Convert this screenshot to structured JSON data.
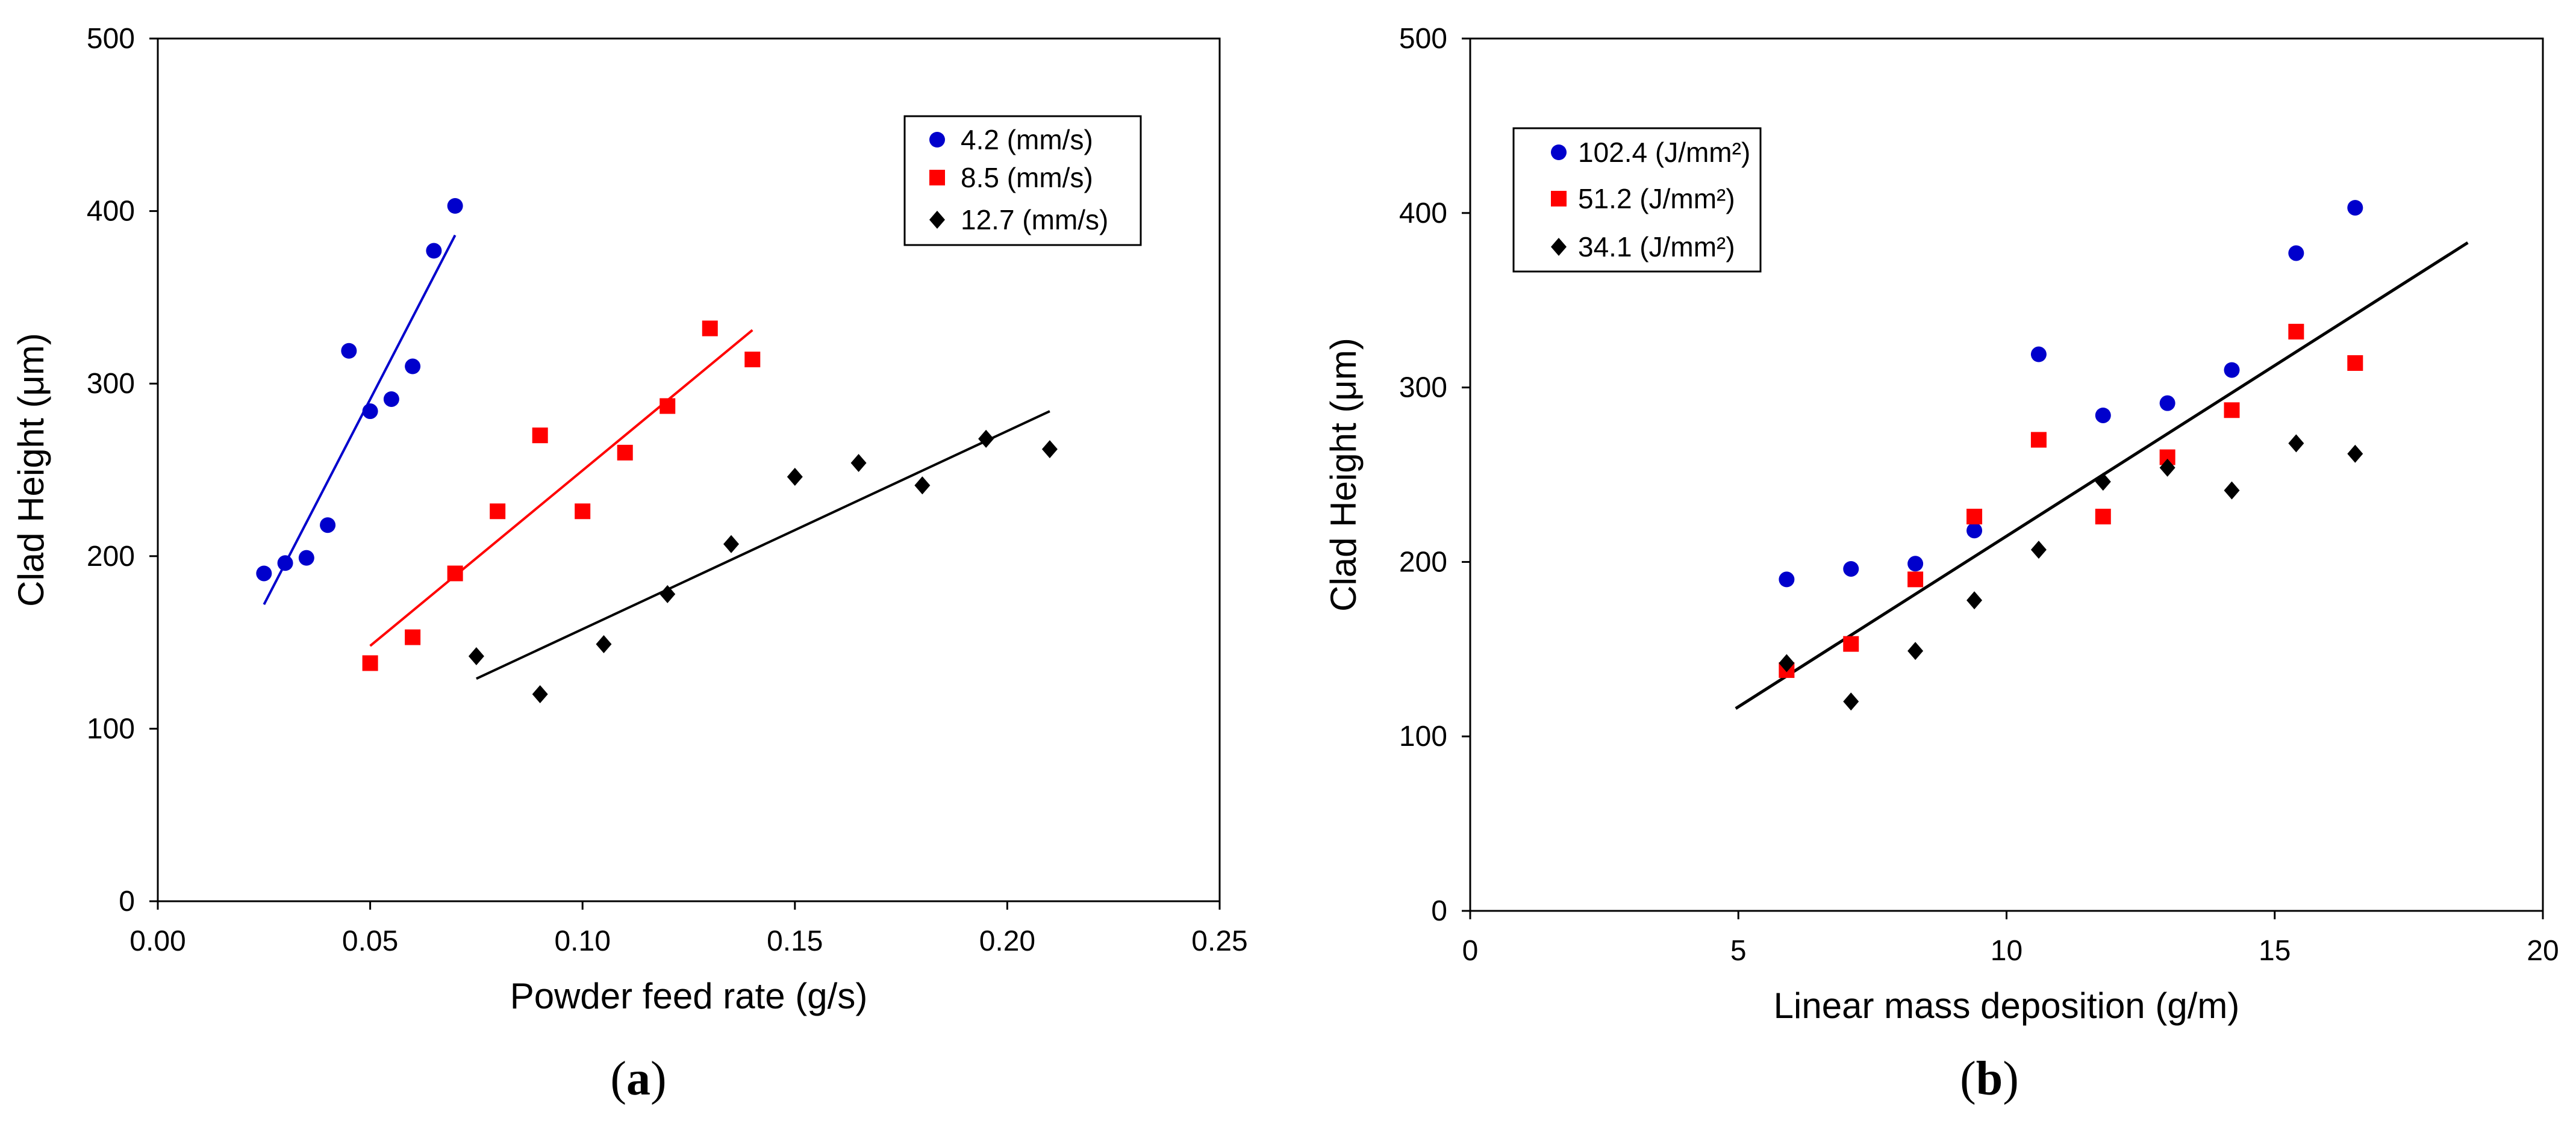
{
  "chart_data": [
    {
      "type": "scatter",
      "caption": "(a)",
      "xlabel": "Powder feed rate (g/s)",
      "ylabel": "Clad Height (μm)",
      "xlim": [
        0,
        0.25
      ],
      "ylim": [
        0,
        500
      ],
      "xticks": [
        "0.00",
        "0.05",
        "0.10",
        "0.15",
        "0.20",
        "0.25"
      ],
      "yticks": [
        "0",
        "100",
        "200",
        "300",
        "400",
        "500"
      ],
      "legend_position": "top-right",
      "series": [
        {
          "name": "4.2 (mm/s)",
          "color": "#0000cc",
          "marker": "circle",
          "x": [
            0.025,
            0.03,
            0.035,
            0.04,
            0.045,
            0.05,
            0.055,
            0.06,
            0.065,
            0.07
          ],
          "y": [
            190,
            196,
            199,
            218,
            319,
            284,
            291,
            310,
            377,
            403
          ],
          "trend": [
            [
              0.025,
              172
            ],
            [
              0.07,
              386
            ]
          ]
        },
        {
          "name": "8.5 (mm/s)",
          "color": "#ff0000",
          "marker": "square",
          "x": [
            0.05,
            0.06,
            0.07,
            0.08,
            0.09,
            0.1,
            0.11,
            0.12,
            0.13,
            0.14
          ],
          "y": [
            138,
            153,
            190,
            226,
            270,
            226,
            260,
            287,
            332,
            314
          ],
          "trend": [
            [
              0.05,
              148
            ],
            [
              0.14,
              331
            ]
          ]
        },
        {
          "name": "12.7 (mm/s)",
          "color": "#000000",
          "marker": "diamond",
          "x": [
            0.075,
            0.09,
            0.105,
            0.12,
            0.135,
            0.15,
            0.165,
            0.18,
            0.195,
            0.21
          ],
          "y": [
            142,
            120,
            149,
            178,
            207,
            246,
            254,
            241,
            268,
            262
          ],
          "trend": [
            [
              0.075,
              129
            ],
            [
              0.21,
              284
            ]
          ]
        }
      ]
    },
    {
      "type": "scatter",
      "caption": "(b)",
      "xlabel": "Linear mass deposition (g/m)",
      "ylabel": "Clad Height (μm)",
      "xlim": [
        0,
        20
      ],
      "ylim": [
        0,
        500
      ],
      "xticks": [
        "0",
        "5",
        "10",
        "15",
        "20"
      ],
      "yticks": [
        "0",
        "100",
        "200",
        "300",
        "400",
        "500"
      ],
      "legend_position": "top-left",
      "series": [
        {
          "name": "102.4 (J/mm²)",
          "color": "#0000cc",
          "marker": "circle",
          "x": [
            5.9,
            7.1,
            8.3,
            9.4,
            10.6,
            11.8,
            13.0,
            14.2,
            15.4,
            16.5
          ],
          "y": [
            190,
            196,
            199,
            218,
            319,
            284,
            291,
            310,
            377,
            403
          ]
        },
        {
          "name": "51.2 (J/mm²)",
          "color": "#ff0000",
          "marker": "square",
          "x": [
            5.9,
            7.1,
            8.3,
            9.4,
            10.6,
            11.8,
            13.0,
            14.2,
            15.4,
            16.5
          ],
          "y": [
            138,
            153,
            190,
            226,
            270,
            226,
            260,
            287,
            332,
            314
          ]
        },
        {
          "name": "34.1 (J/mm²)",
          "color": "#000000",
          "marker": "diamond",
          "x": [
            5.9,
            7.1,
            8.3,
            9.4,
            10.6,
            11.8,
            13.0,
            14.2,
            15.4,
            16.5
          ],
          "y": [
            142,
            120,
            149,
            178,
            207,
            246,
            254,
            241,
            268,
            262
          ]
        }
      ],
      "trend": [
        [
          4.95,
          116
        ],
        [
          18.6,
          383
        ]
      ]
    }
  ]
}
